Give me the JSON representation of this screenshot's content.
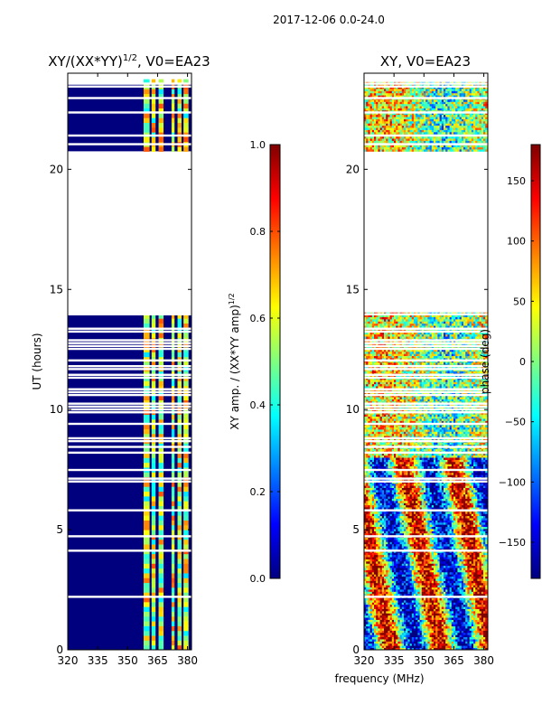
{
  "figure": {
    "suptitle": "2017-12-06 0.0-24.0",
    "common_xlabel": "frequency (MHz)"
  },
  "chart_data": [
    {
      "type": "heatmap",
      "title_main": "XY/(XX*YY)",
      "title_exp": "1/2",
      "title_tail": ", V0=EA23",
      "xlabel": "",
      "ylabel": "UT (hours)",
      "xlim": [
        320,
        382
      ],
      "ylim": [
        0,
        24
      ],
      "xticks": [
        320,
        335,
        350,
        365,
        380
      ],
      "yticks": [
        0,
        5,
        10,
        15,
        20
      ],
      "gap_hours": [
        [
          13.95,
          20.75
        ]
      ],
      "bright_channels_mhz": [
        [
          358,
          361
        ],
        [
          362,
          364
        ],
        [
          365.5,
          368
        ],
        [
          372,
          373.5
        ],
        [
          375,
          377
        ],
        [
          378,
          380.5
        ]
      ],
      "colorbar": {
        "label_main": "XY amp. / (XX*YY amp)",
        "label_exp": "1/2",
        "ticks": [
          "0.0",
          "0.2",
          "0.4",
          "0.6",
          "0.8",
          "1.0"
        ],
        "range": [
          0.0,
          1.0
        ]
      }
    },
    {
      "type": "heatmap",
      "title_main": "XY, V0=EA23",
      "title_exp": "",
      "title_tail": "",
      "xlabel": "frequency (MHz)",
      "ylabel": "",
      "xlim": [
        320,
        382
      ],
      "ylim": [
        0,
        24
      ],
      "xticks": [
        320,
        335,
        350,
        365,
        380
      ],
      "yticks": [
        0,
        5,
        10,
        15,
        20
      ],
      "gap_hours": [
        [
          13.95,
          20.75
        ]
      ],
      "colorbar": {
        "label_main": "phase (deg)",
        "label_exp": "",
        "ticks": [
          "150",
          "100",
          "50",
          "0",
          "−50",
          "−100",
          "−150"
        ],
        "tick_values": [
          150,
          100,
          50,
          0,
          -50,
          -100,
          -150
        ],
        "range": [
          -180,
          180
        ]
      }
    }
  ]
}
